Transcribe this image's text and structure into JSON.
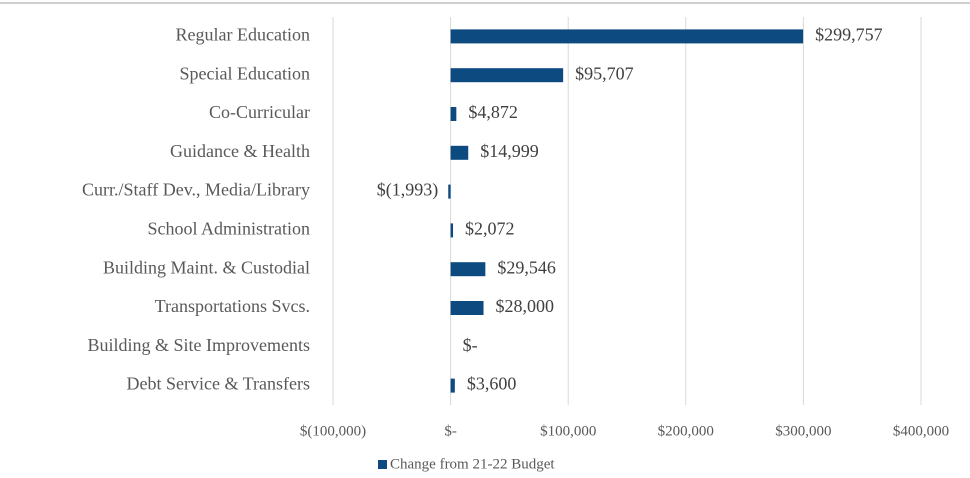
{
  "chart_data": {
    "type": "bar",
    "orientation": "horizontal",
    "categories": [
      "Regular Education",
      "Special Education",
      "Co-Curricular",
      "Guidance & Health",
      "Curr./Staff Dev., Media/Library",
      "School Administration",
      "Building Maint. & Custodial",
      "Transportations Svcs.",
      "Building & Site Improvements",
      "Debt Service & Transfers"
    ],
    "series": [
      {
        "name": "Change from 21-22 Budget",
        "color": "#0c4a80",
        "values": [
          299757,
          95707,
          4872,
          14999,
          -1993,
          2072,
          29546,
          28000,
          0,
          3600
        ],
        "value_labels": [
          "$299,757",
          "$95,707",
          "$4,872",
          "$14,999",
          "$(1,993)",
          "$2,072",
          "$29,546",
          "$28,000",
          "$-",
          "$3,600"
        ]
      }
    ],
    "xlim": [
      -100000,
      400000
    ],
    "xticks": [
      {
        "value": -100000,
        "label": "$(100,000)"
      },
      {
        "value": 0,
        "label": "$-"
      },
      {
        "value": 100000,
        "label": "$100,000"
      },
      {
        "value": 200000,
        "label": "$200,000"
      },
      {
        "value": 300000,
        "label": "$300,000"
      },
      {
        "value": 400000,
        "label": "$400,000"
      }
    ],
    "grid": true,
    "legend": "bottom"
  }
}
